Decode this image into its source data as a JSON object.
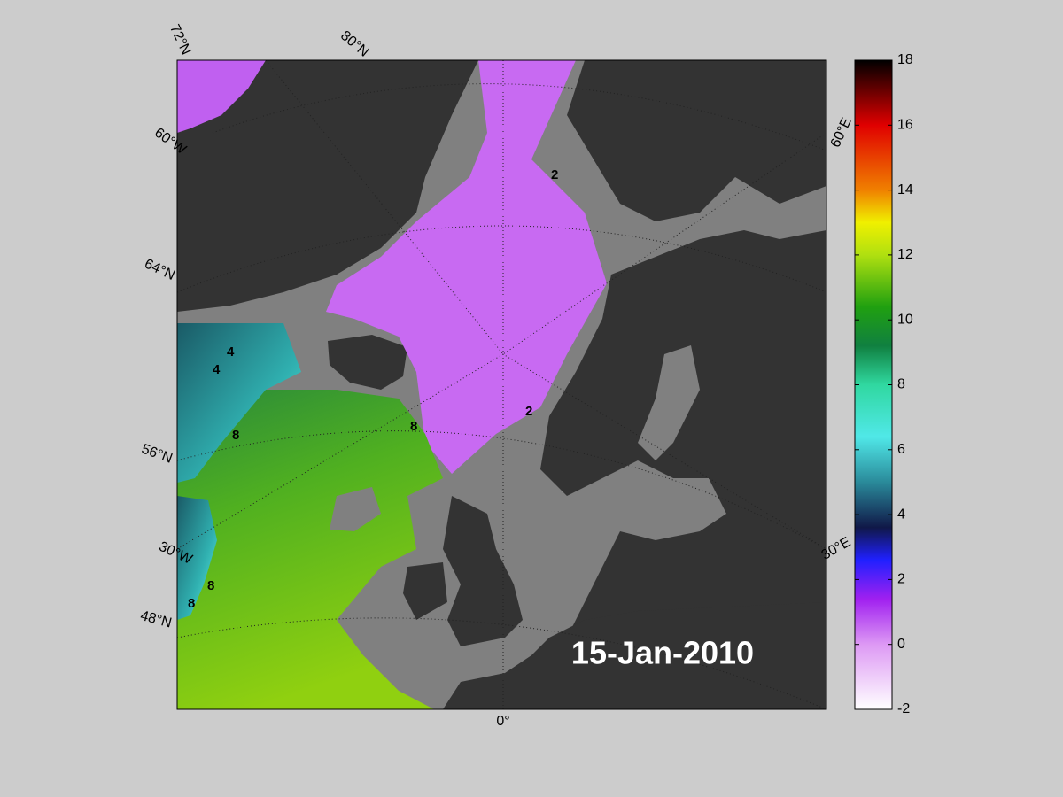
{
  "map": {
    "date": "15-Jan-2010",
    "lat_labels": [
      "72°N",
      "80°N",
      "64°N",
      "56°N",
      "48°N"
    ],
    "lon_labels": [
      "60°W",
      "30°W",
      "0°",
      "30°E",
      "60°E"
    ],
    "contour_labels": [
      "2",
      "2",
      "4",
      "4",
      "8",
      "8",
      "8",
      "8"
    ]
  },
  "colorbar": {
    "lim": [
      -2,
      18
    ],
    "ticks": [
      -2,
      0,
      2,
      4,
      6,
      8,
      10,
      12,
      14,
      16,
      18
    ]
  }
}
